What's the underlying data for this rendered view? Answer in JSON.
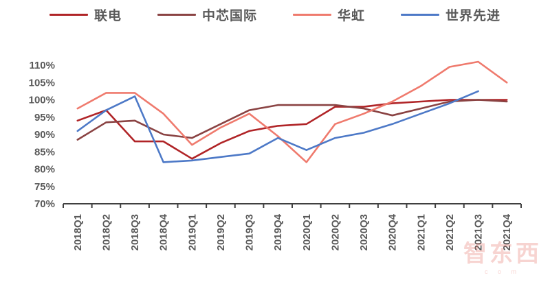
{
  "chart_data": {
    "type": "line",
    "title": "",
    "categories": [
      "2018Q1",
      "2018Q2",
      "2018Q3",
      "2018Q4",
      "2019Q1",
      "2019Q2",
      "2019Q3",
      "2019Q4",
      "2020Q1",
      "2020Q2",
      "2020Q3",
      "2020Q4",
      "2021Q1",
      "2021Q2",
      "2021Q3",
      "2021Q4"
    ],
    "series": [
      {
        "name": "联电",
        "color": "#b02427",
        "values": [
          94,
          97,
          88,
          88,
          83,
          87.5,
          91,
          92.5,
          93,
          98,
          98,
          99,
          99.5,
          100,
          100,
          100
        ]
      },
      {
        "name": "中芯国际",
        "color": "#8a4343",
        "values": [
          88.5,
          93.5,
          94,
          90,
          89,
          93,
          97,
          98.5,
          98.5,
          98.5,
          97.5,
          95.5,
          97.5,
          99.5,
          100,
          99.5
        ]
      },
      {
        "name": "华虹",
        "color": "#ef7a6d",
        "values": [
          97.5,
          102,
          102,
          96,
          87,
          92,
          96,
          89.5,
          82,
          93,
          96,
          99.5,
          104,
          109.5,
          111,
          105
        ]
      },
      {
        "name": "世界先进",
        "color": "#4d79c7",
        "values": [
          91,
          97,
          101,
          82,
          82.5,
          83.5,
          84.5,
          89,
          85.5,
          89,
          90.5,
          93,
          96,
          99,
          102.5,
          null
        ]
      }
    ],
    "ylim": [
      70,
      110
    ],
    "ytick_step": 5,
    "ytick_suffix": "%",
    "yticklabels": [
      "110%",
      "105%",
      "100%",
      "95%",
      "90%",
      "85%",
      "80%",
      "75%",
      "70%"
    ],
    "xlabel": "",
    "ylabel": "",
    "grid": "off",
    "legend_position": "top",
    "axis_color": "#404040",
    "tick_label_color": "#595959"
  },
  "watermark": {
    "text": "智东西",
    "subtext": "c o m"
  }
}
